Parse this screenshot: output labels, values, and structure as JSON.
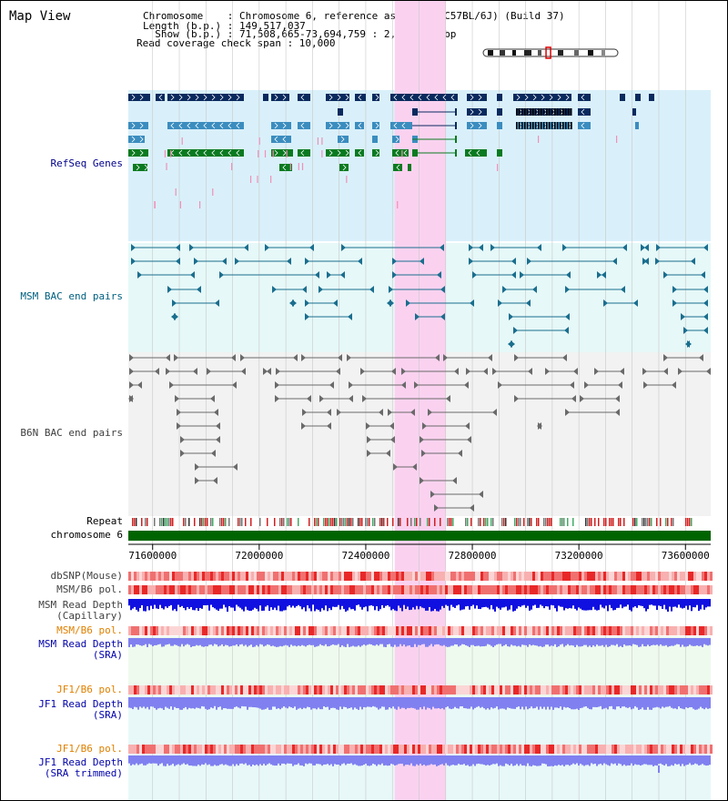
{
  "app": {
    "title": "Map View"
  },
  "info": {
    "lines": [
      "Chromosome    : Chromosome 6, reference assembly (C57BL/6J) (Build 37)",
      "Length (b.p.) : 149,517,037",
      "  Show (b.p.) : 71,508,665-73,694,759 : 2,186,095 bp",
      "Read coverage check span : 10,000"
    ]
  },
  "chromosome": {
    "start": 71508665,
    "end": 73694759,
    "label": "chromosome 6",
    "ideogram_position": 0.48
  },
  "highlight": {
    "start": 72508665,
    "end": 72700000
  },
  "axis": {
    "ticks": [
      {
        "label": "71600000",
        "value": 71600000
      },
      {
        "label": "72000000",
        "value": 72000000
      },
      {
        "label": "72400000",
        "value": 72400000
      },
      {
        "label": "72800000",
        "value": 72800000
      },
      {
        "label": "73200000",
        "value": 73200000
      },
      {
        "label": "73600000",
        "value": 73600000
      }
    ]
  },
  "tracks": [
    {
      "id": "refseq",
      "label": "RefSeq Genes",
      "color": "#00008b",
      "bg": "#d8eef9"
    },
    {
      "id": "msm-bac",
      "label": "MSM BAC end pairs",
      "color": "#006080",
      "bg": "#e6f8f8"
    },
    {
      "id": "b6n-bac",
      "label": "B6N BAC end pairs",
      "color": "#404040",
      "bg": "#f0f0f0"
    },
    {
      "id": "repeat",
      "label": "Repeat",
      "color": "#000000"
    },
    {
      "id": "chrom",
      "label": "chromosome 6",
      "color": "#000000",
      "bar_color": "#006400"
    },
    {
      "id": "dbsnp",
      "label": "dbSNP(Mouse)",
      "color": "#404040"
    },
    {
      "id": "msm-b6-pol",
      "label": "MSM/B6 pol.",
      "color": "#404040"
    },
    {
      "id": "msm-depth-cap",
      "label": "MSM Read Depth",
      "label2": "(Capillary)",
      "color": "#404040"
    },
    {
      "id": "msm-b6-pol-sra",
      "label": "MSM/B6 pol.",
      "color": "#e08000"
    },
    {
      "id": "msm-depth-sra",
      "label": "MSM Read Depth",
      "label2": "(SRA)",
      "color": "#0000aa"
    },
    {
      "id": "jf1-b6-pol",
      "label": "JF1/B6 pol.",
      "color": "#e08000"
    },
    {
      "id": "jf1-depth-sra",
      "label": "JF1 Read Depth",
      "label2": "(SRA)",
      "color": "#0000aa"
    },
    {
      "id": "jf1-b6-pol-trim",
      "label": "JF1/B6 pol.",
      "color": "#e08000"
    },
    {
      "id": "jf1-depth-trim",
      "label": "JF1 Read Depth",
      "label2": "(SRA trimmed)",
      "color": "#0000aa"
    }
  ],
  "colors": {
    "gene_dark": "#0a2a5e",
    "gene_mid": "#3b8dbf",
    "gene_green": "#0a7a20",
    "msm_line": "#1a6e8e",
    "b6n_line": "#6a6a6a",
    "depth_dark": "#1010e0",
    "depth_light": "#8080f0",
    "pol_red": "#e83030",
    "highlight": "#fad2f0",
    "grid": "#c8c8c8"
  }
}
